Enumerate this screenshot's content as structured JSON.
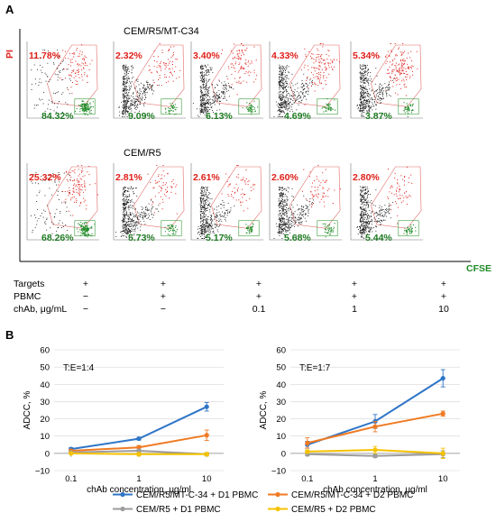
{
  "panel_a": {
    "label": "A",
    "y_axis_name": "PI",
    "x_axis_name": "CFSE",
    "rows": [
      {
        "title": "CEM/R5/MT-C34",
        "plots": [
          {
            "pi_pct": "11.78%",
            "cfse_pct": "84.32%",
            "density": "low"
          },
          {
            "pi_pct": "2.32%",
            "cfse_pct": "9.09%",
            "density": "high"
          },
          {
            "pi_pct": "3.40%",
            "cfse_pct": "6.13%",
            "density": "high"
          },
          {
            "pi_pct": "4.33%",
            "cfse_pct": "4.69%",
            "density": "high"
          },
          {
            "pi_pct": "5.34%",
            "cfse_pct": "3.87%",
            "density": "high"
          }
        ]
      },
      {
        "title": "CEM/R5",
        "plots": [
          {
            "pi_pct": "25.32%",
            "cfse_pct": "68.26%",
            "density": "low"
          },
          {
            "pi_pct": "2.81%",
            "cfse_pct": "5.73%",
            "density": "high"
          },
          {
            "pi_pct": "2.61%",
            "cfse_pct": "5.17%",
            "density": "high"
          },
          {
            "pi_pct": "2.60%",
            "cfse_pct": "5.68%",
            "density": "high"
          },
          {
            "pi_pct": "2.80%",
            "cfse_pct": "5.44%",
            "density": "high"
          }
        ]
      }
    ],
    "conditions": {
      "labels": [
        "Targets",
        "PBMC",
        "chAb, μg/mL"
      ],
      "columns": [
        [
          "+",
          "−",
          "−"
        ],
        [
          "+",
          "+",
          "−"
        ],
        [
          "+",
          "+",
          "0.1"
        ],
        [
          "+",
          "+",
          "1"
        ],
        [
          "+",
          "+",
          "10"
        ]
      ]
    },
    "colors": {
      "pi": "#e0201a",
      "cfse": "#1e8a25",
      "events": "#111111"
    }
  },
  "panel_b": {
    "label": "B"
  },
  "chart_data": [
    {
      "type": "line",
      "title": "T:E=1:4",
      "xlabel": "chAb concentration, μg/ml",
      "ylabel": "ADCC, %",
      "x": [
        "0.1",
        "1",
        "10"
      ],
      "xscale": "log",
      "ylim": [
        -10,
        60
      ],
      "yticks": [
        "−10",
        "0",
        "10",
        "20",
        "30",
        "40",
        "50",
        "60"
      ],
      "grid": true,
      "series": [
        {
          "name": "CEM/R5/MT-C-34 + D1 PBMC",
          "color": "#2e75c7",
          "values": [
            2.5,
            8.5,
            27
          ],
          "err": [
            0.8,
            0.8,
            2.5
          ]
        },
        {
          "name": "CEM/R5/MT-C-34 + D2 PBMC",
          "color": "#f07a22",
          "values": [
            1.5,
            3.5,
            10.5
          ],
          "err": [
            0.6,
            1,
            3
          ]
        },
        {
          "name": "CEM/R5 + D1 PBMC",
          "color": "#9c9c9c",
          "values": [
            0.5,
            1.5,
            -0.5
          ],
          "err": [
            0.5,
            1,
            1
          ]
        },
        {
          "name": "CEM/R5 + D2 PBMC",
          "color": "#f5c200",
          "values": [
            0,
            -0.5,
            -0.5
          ],
          "err": [
            0.5,
            1,
            1
          ]
        }
      ]
    },
    {
      "type": "line",
      "title": "T:E=1:7",
      "xlabel": "chAb concentration, μg/ml",
      "ylabel": "ADCC, %",
      "x": [
        "0.1",
        "1",
        "10"
      ],
      "xscale": "log",
      "ylim": [
        -10,
        60
      ],
      "yticks": [
        "−10",
        "0",
        "10",
        "20",
        "30",
        "40",
        "50",
        "60"
      ],
      "grid": true,
      "series": [
        {
          "name": "CEM/R5/MT-C-34 + D1 PBMC",
          "color": "#2e75c7",
          "values": [
            5,
            18.5,
            43.5
          ],
          "err": [
            2,
            4,
            5
          ]
        },
        {
          "name": "CEM/R5/MT-C-34 + D2 PBMC",
          "color": "#f07a22",
          "values": [
            6,
            15.5,
            23
          ],
          "err": [
            3,
            3,
            1.5
          ]
        },
        {
          "name": "CEM/R5 + D1 PBMC",
          "color": "#9c9c9c",
          "values": [
            -0.5,
            -1.5,
            -0.5
          ],
          "err": [
            1,
            1,
            2
          ]
        },
        {
          "name": "CEM/R5 + D2 PBMC",
          "color": "#f5c200",
          "values": [
            1,
            2,
            0
          ],
          "err": [
            1,
            2,
            3
          ]
        }
      ]
    }
  ],
  "legend": [
    {
      "name": "CEM/R5/MT-C-34 + D1 PBMC",
      "color": "#2e75c7"
    },
    {
      "name": "CEM/R5/MT-C-34 + D2 PBMC",
      "color": "#f07a22"
    },
    {
      "name": "CEM/R5 + D1 PBMC",
      "color": "#9c9c9c"
    },
    {
      "name": "CEM/R5 + D2 PBMC",
      "color": "#f5c200"
    }
  ]
}
